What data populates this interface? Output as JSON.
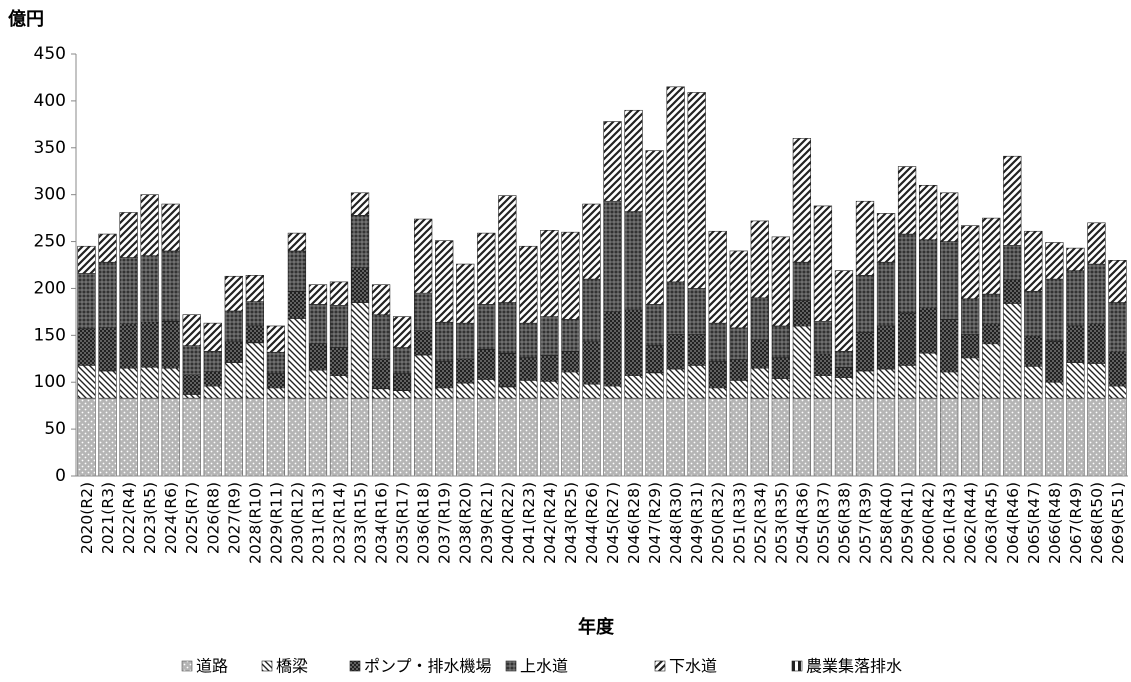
{
  "chart_data": {
    "type": "stacked-bar",
    "y_unit_label": "億円",
    "x_title": "年度",
    "categories": [
      "2020(R2)",
      "2021(R3)",
      "2022(R4)",
      "2023(R5)",
      "2024(R6)",
      "2025(R7)",
      "2026(R8)",
      "2027(R9)",
      "2028(R10)",
      "2029(R11)",
      "2030(R12)",
      "2031(R13)",
      "2032(R14)",
      "2033(R15)",
      "2034(R16)",
      "2035(R17)",
      "2036(R18)",
      "2037(R19)",
      "2038(R20)",
      "2039(R21)",
      "2040(R22)",
      "2041(R23)",
      "2042(R24)",
      "2043(R25)",
      "2044(R26)",
      "2045(R27)",
      "2046(R28)",
      "2047(R29)",
      "2048(R30)",
      "2049(R31)",
      "2050(R32)",
      "2051(R33)",
      "2052(R34)",
      "2053(R35)",
      "2054(R36)",
      "2055(R37)",
      "2056(R38)",
      "2057(R39)",
      "2058(R40)",
      "2059(R41)",
      "2060(R42)",
      "2061(R43)",
      "2062(R44)",
      "2063(R45)",
      "2064(R46)",
      "2065(R47)",
      "2066(R48)",
      "2067(R49)",
      "2068(R50)",
      "2069(R51)"
    ],
    "series": [
      {
        "name": "道路",
        "color": "#555555",
        "values": [
          83,
          83,
          83,
          83,
          83,
          83,
          83,
          83,
          83,
          83,
          83,
          83,
          83,
          83,
          83,
          83,
          83,
          83,
          83,
          83,
          83,
          83,
          83,
          83,
          83,
          83,
          83,
          83,
          83,
          83,
          83,
          83,
          83,
          83,
          83,
          83,
          83,
          83,
          83,
          83,
          83,
          83,
          83,
          83,
          83,
          83,
          83,
          83,
          83,
          83
        ]
      },
      {
        "name": "橋梁",
        "color": "#222222",
        "values": [
          35,
          29,
          32,
          33,
          32,
          4,
          13,
          38,
          59,
          11,
          85,
          30,
          24,
          102,
          10,
          8,
          46,
          11,
          16,
          20,
          12,
          19,
          18,
          28,
          15,
          13,
          24,
          27,
          31,
          35,
          11,
          19,
          32,
          21,
          77,
          24,
          22,
          29,
          31,
          35,
          48,
          28,
          43,
          58,
          101,
          34,
          17,
          38,
          37,
          13
        ]
      },
      {
        "name": "ポンプ・排水機場",
        "color": "#222222",
        "values": [
          39,
          46,
          47,
          48,
          50,
          21,
          15,
          22,
          18,
          15,
          29,
          28,
          30,
          37,
          32,
          18,
          26,
          28,
          26,
          32,
          36,
          24,
          28,
          22,
          45,
          79,
          70,
          29,
          37,
          33,
          28,
          22,
          30,
          22,
          27,
          23,
          11,
          41,
          46,
          56,
          48,
          56,
          25,
          21,
          25,
          32,
          44,
          39,
          42,
          36
        ]
      },
      {
        "name": "上水道",
        "color": "#222222",
        "values": [
          59,
          70,
          71,
          71,
          75,
          31,
          22,
          33,
          26,
          23,
          43,
          42,
          45,
          56,
          47,
          28,
          40,
          42,
          38,
          48,
          54,
          37,
          41,
          34,
          67,
          118,
          105,
          44,
          56,
          49,
          41,
          34,
          45,
          34,
          41,
          35,
          17,
          61,
          68,
          84,
          73,
          83,
          38,
          32,
          37,
          48,
          66,
          59,
          64,
          53
        ]
      },
      {
        "name": "下水道",
        "color": "#222222",
        "values": [
          29,
          30,
          48,
          65,
          50,
          33,
          30,
          37,
          28,
          28,
          19,
          21,
          25,
          24,
          32,
          33,
          79,
          87,
          63,
          76,
          114,
          82,
          92,
          93,
          80,
          85,
          108,
          164,
          208,
          209,
          98,
          82,
          82,
          95,
          132,
          123,
          86,
          79,
          52,
          72,
          58,
          52,
          78,
          81,
          95,
          64,
          39,
          24,
          44,
          45
        ]
      },
      {
        "name": "農業集落排水",
        "color": "#222222",
        "values": [
          0,
          0,
          0,
          0,
          0,
          0,
          0,
          0,
          0,
          0,
          0,
          0,
          0,
          0,
          0,
          0,
          0,
          0,
          0,
          0,
          0,
          0,
          0,
          0,
          0,
          0,
          0,
          0,
          0,
          0,
          0,
          0,
          0,
          0,
          0,
          0,
          0,
          0,
          0,
          0,
          0,
          0,
          0,
          0,
          0,
          0,
          0,
          0,
          0,
          0
        ]
      }
    ],
    "ylim": [
      0,
      450
    ],
    "yticks": [
      0,
      50,
      100,
      150,
      200,
      250,
      300,
      350,
      400,
      450
    ],
    "grid": false,
    "legend": "bottom"
  }
}
